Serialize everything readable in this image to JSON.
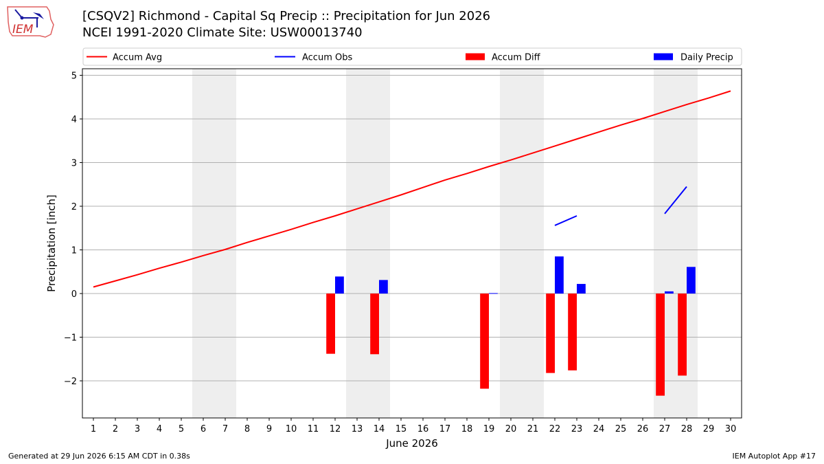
{
  "header": {
    "title_line1": "[CSQV2] Richmond - Capital Sq Precip :: Precipitation for Jun 2026",
    "title_line2": "NCEI 1991-2020 Climate Site: USW00013740",
    "logo_text": "IEM"
  },
  "footer": {
    "left": "Generated at 29 Jun 2026 6:15 AM CDT in 0.38s",
    "right": "IEM Autoplot App #17"
  },
  "colors": {
    "accum_avg": "#ff0000",
    "accum_obs": "#0000ff",
    "accum_diff": "#ff0000",
    "daily_precip": "#0000ff",
    "weekend_shade": "#eeeeee",
    "grid": "#b0b0b0"
  },
  "chart_data": {
    "type": "bar",
    "xlabel": "June 2026",
    "ylabel": "Precipitation [inch]",
    "xlim": [
      0.5,
      30.5
    ],
    "ylim": [
      -2.85,
      5.15
    ],
    "x_ticks": [
      1,
      2,
      3,
      4,
      5,
      6,
      7,
      8,
      9,
      10,
      11,
      12,
      13,
      14,
      15,
      16,
      17,
      18,
      19,
      20,
      21,
      22,
      23,
      24,
      25,
      26,
      27,
      28,
      29,
      30
    ],
    "y_ticks": [
      -2,
      -1,
      0,
      1,
      2,
      3,
      4,
      5
    ],
    "y_tick_labels": [
      "−2",
      "−1",
      "0",
      "1",
      "2",
      "3",
      "4",
      "5"
    ],
    "grid": true,
    "legend_placement": "top, above plot",
    "legend": [
      {
        "label": "Accum Avg",
        "kind": "line",
        "color": "#ff0000"
      },
      {
        "label": "Accum Obs",
        "kind": "line",
        "color": "#0000ff"
      },
      {
        "label": "Accum Diff",
        "kind": "bar",
        "color": "#ff0000"
      },
      {
        "label": "Daily Precip",
        "kind": "bar",
        "color": "#0000ff"
      }
    ],
    "weekend_spans": [
      [
        5.5,
        7.5
      ],
      [
        12.5,
        14.5
      ],
      [
        19.5,
        21.5
      ],
      [
        26.5,
        28.5
      ]
    ],
    "series": [
      {
        "name": "Accum Avg",
        "type": "line",
        "points": [
          [
            1,
            0.15
          ],
          [
            2,
            0.29
          ],
          [
            3,
            0.43
          ],
          [
            4,
            0.58
          ],
          [
            5,
            0.72
          ],
          [
            6,
            0.87
          ],
          [
            7,
            1.01
          ],
          [
            8,
            1.17
          ],
          [
            9,
            1.32
          ],
          [
            10,
            1.47
          ],
          [
            11,
            1.63
          ],
          [
            12,
            1.78
          ],
          [
            13,
            1.94
          ],
          [
            14,
            2.1
          ],
          [
            15,
            2.26
          ],
          [
            16,
            2.43
          ],
          [
            17,
            2.6
          ],
          [
            18,
            2.75
          ],
          [
            19,
            2.91
          ],
          [
            20,
            3.06
          ],
          [
            21,
            3.22
          ],
          [
            22,
            3.38
          ],
          [
            23,
            3.54
          ],
          [
            24,
            3.7
          ],
          [
            25,
            3.86
          ],
          [
            26,
            4.01
          ],
          [
            27,
            4.17
          ],
          [
            28,
            4.33
          ],
          [
            29,
            4.48
          ],
          [
            30,
            4.64
          ]
        ]
      },
      {
        "name": "Accum Obs",
        "type": "line",
        "segments": [
          [
            [
              22,
              1.56
            ],
            [
              23,
              1.78
            ]
          ],
          [
            [
              27,
              1.83
            ],
            [
              28,
              2.45
            ]
          ]
        ]
      },
      {
        "name": "Accum Diff",
        "type": "bar",
        "points": [
          [
            12,
            -1.38
          ],
          [
            14,
            -1.39
          ],
          [
            19,
            -2.18
          ],
          [
            22,
            -1.82
          ],
          [
            23,
            -1.76
          ],
          [
            27,
            -2.34
          ],
          [
            28,
            -1.88
          ]
        ]
      },
      {
        "name": "Daily Precip",
        "type": "bar",
        "points": [
          [
            12,
            0.39
          ],
          [
            14,
            0.31
          ],
          [
            19,
            0.01
          ],
          [
            22,
            0.85
          ],
          [
            23,
            0.22
          ],
          [
            27,
            0.05
          ],
          [
            28,
            0.61
          ]
        ]
      }
    ]
  }
}
